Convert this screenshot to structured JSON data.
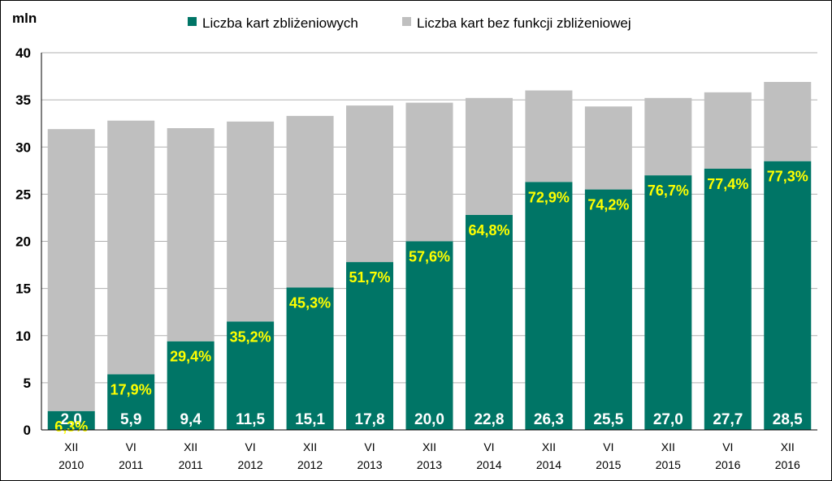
{
  "chart_data": {
    "type": "bar",
    "stacked": true,
    "unit_label": "mln",
    "categories": [
      [
        "XII",
        "2010"
      ],
      [
        "VI",
        "2011"
      ],
      [
        "XII",
        "2011"
      ],
      [
        "VI",
        "2012"
      ],
      [
        "XII",
        "2012"
      ],
      [
        "VI",
        "2013"
      ],
      [
        "XII",
        "2013"
      ],
      [
        "VI",
        "2014"
      ],
      [
        "XII",
        "2014"
      ],
      [
        "VI",
        "2015"
      ],
      [
        "XII",
        "2015"
      ],
      [
        "VI",
        "2016"
      ],
      [
        "XII",
        "2016"
      ]
    ],
    "series": [
      {
        "name": "Liczba kart zbliżeniowych",
        "color": "#007566",
        "values": [
          2.0,
          5.9,
          9.4,
          11.5,
          15.1,
          17.8,
          20.0,
          22.8,
          26.3,
          25.5,
          27.0,
          27.7,
          28.5
        ],
        "value_labels": [
          "2,0",
          "5,9",
          "9,4",
          "11,5",
          "15,1",
          "17,8",
          "20,0",
          "22,8",
          "26,3",
          "25,5",
          "27,0",
          "27,7",
          "28,5"
        ]
      },
      {
        "name": "Liczba kart bez funkcji zbliżeniowej",
        "color": "#bfbfbf",
        "values": [
          29.9,
          26.9,
          22.6,
          21.2,
          18.2,
          16.6,
          14.7,
          12.4,
          9.7,
          8.8,
          8.2,
          8.1,
          8.4
        ]
      }
    ],
    "share_labels": [
      "6,3%",
      "17,9%",
      "29,4%",
      "35,2%",
      "45,3%",
      "51,7%",
      "57,6%",
      "64,8%",
      "72,9%",
      "74,2%",
      "76,7%",
      "77,4%",
      "77,3%"
    ],
    "share_label_color": "#ffff00",
    "ylim": [
      0,
      40
    ],
    "yticks": [
      0,
      5,
      10,
      15,
      20,
      25,
      30,
      35,
      40
    ],
    "grid": true,
    "legend_position": "top"
  }
}
